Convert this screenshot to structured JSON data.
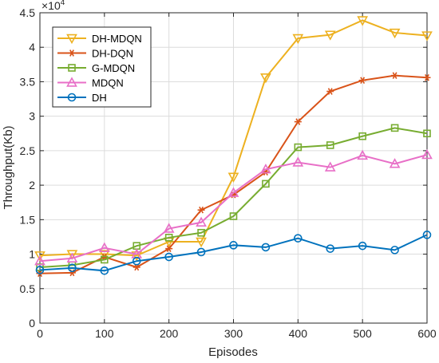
{
  "chart_data": {
    "type": "line",
    "xlabel": "Episodes",
    "ylabel": "Throughput(Kb)",
    "scale_label_base": "×10",
    "scale_label_exp": "4",
    "xlim": [
      0,
      600
    ],
    "ylim": [
      0,
      4.5
    ],
    "x_ticks": [
      0,
      100,
      200,
      300,
      400,
      500,
      600
    ],
    "y_ticks": [
      0,
      0.5,
      1,
      1.5,
      2,
      2.5,
      3,
      3.5,
      4,
      4.5
    ],
    "y_tick_labels": [
      "0",
      "0.5",
      "1",
      "1.5",
      "2",
      "2.5",
      "3",
      "3.5",
      "4",
      "4.5"
    ],
    "grid": true,
    "legend_position": "top-left",
    "x": [
      0,
      50,
      100,
      150,
      200,
      250,
      300,
      350,
      400,
      450,
      500,
      550,
      600
    ],
    "series": [
      {
        "name": "DH-MDQN",
        "color": "#EDB120",
        "marker": "triangle-down",
        "values": [
          0.98,
          1.0,
          1.0,
          0.98,
          1.18,
          1.18,
          2.12,
          3.56,
          4.13,
          4.18,
          4.39,
          4.21,
          4.17
        ]
      },
      {
        "name": "DH-DQN",
        "color": "#D95319",
        "marker": "asterisk",
        "values": [
          0.72,
          0.73,
          0.96,
          0.81,
          1.08,
          1.64,
          1.86,
          2.19,
          2.92,
          3.36,
          3.52,
          3.59,
          3.56
        ]
      },
      {
        "name": "G-MDQN",
        "color": "#77AC30",
        "marker": "square",
        "values": [
          0.81,
          0.84,
          0.92,
          1.12,
          1.24,
          1.31,
          1.55,
          2.02,
          2.55,
          2.58,
          2.71,
          2.83,
          2.75
        ]
      },
      {
        "name": "MDQN",
        "color": "#E86FC7",
        "marker": "triangle-up",
        "values": [
          0.9,
          0.94,
          1.09,
          1.0,
          1.37,
          1.46,
          1.89,
          2.23,
          2.33,
          2.26,
          2.43,
          2.31,
          2.44
        ]
      },
      {
        "name": "DH",
        "color": "#0072BD",
        "marker": "circle",
        "values": [
          0.77,
          0.8,
          0.76,
          0.9,
          0.96,
          1.03,
          1.13,
          1.1,
          1.23,
          1.08,
          1.12,
          1.06,
          1.28
        ]
      }
    ]
  }
}
